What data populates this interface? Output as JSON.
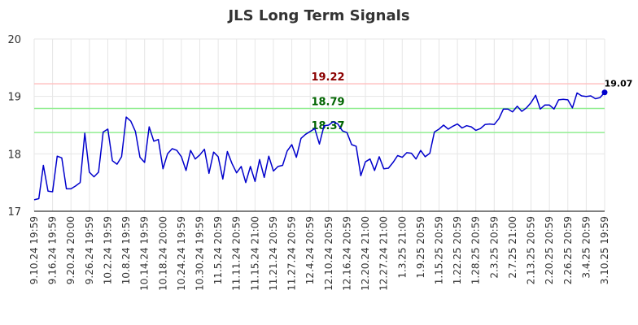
{
  "chart_data": {
    "type": "line",
    "title": "JLS Long Term Signals",
    "xlabel": "",
    "ylabel": "",
    "ylim": [
      17,
      20
    ],
    "yticks": [
      "17",
      "18",
      "19",
      "20"
    ],
    "grid": true,
    "x_tick_labels": [
      "9.10.24 19:59",
      "9.16.24 19:59",
      "9.20.24 20:00",
      "9.26.24 19:59",
      "10.2.24 19:59",
      "10.8.24 19:59",
      "10.14.24 19:59",
      "10.18.24 20:00",
      "10.24.24 19:59",
      "10.30.24 19:59",
      "11.5.24 20:59",
      "11.11.24 20:59",
      "11.15.24 21:00",
      "11.21.24 20:59",
      "11.27.24 20:59",
      "12.4.24 20:59",
      "12.10.24 20:59",
      "12.16.24 20:59",
      "12.20.24 21:00",
      "12.27.24 21:00",
      "1.3.25 21:00",
      "1.9.25 20:59",
      "1.15.25 20:59",
      "1.22.25 20:59",
      "1.28.25 20:59",
      "2.3.25 20:59",
      "2.7.25 21:00",
      "2.13.25 20:59",
      "2.20.25 20:59",
      "2.26.25 20:59",
      "3.4.25 20:59",
      "3.10.25 19:59"
    ],
    "series": [
      {
        "color": "#0000cc",
        "values": [
          17.2,
          17.22,
          17.8,
          17.35,
          17.34,
          17.96,
          17.93,
          17.39,
          17.39,
          17.44,
          17.5,
          18.36,
          17.68,
          17.6,
          17.68,
          18.38,
          18.43,
          17.88,
          17.82,
          17.95,
          18.64,
          18.57,
          18.39,
          17.94,
          17.85,
          18.47,
          18.22,
          18.25,
          17.74,
          18.0,
          18.09,
          18.06,
          17.95,
          17.71,
          18.06,
          17.91,
          17.98,
          18.08,
          17.66,
          18.03,
          17.95,
          17.56,
          18.04,
          17.83,
          17.67,
          17.78,
          17.5,
          17.78,
          17.52,
          17.9,
          17.59,
          17.96,
          17.7,
          17.78,
          17.8,
          18.05,
          18.16,
          17.94,
          18.27,
          18.34,
          18.39,
          18.44,
          18.17,
          18.49,
          18.5,
          18.56,
          18.52,
          18.4,
          18.37,
          18.16,
          18.13,
          17.62,
          17.86,
          17.91,
          17.71,
          17.95,
          17.74,
          17.75,
          17.85,
          17.97,
          17.94,
          18.02,
          18.01,
          17.91,
          18.06,
          17.95,
          18.01,
          18.38,
          18.43,
          18.5,
          18.43,
          18.48,
          18.52,
          18.45,
          18.49,
          18.47,
          18.41,
          18.44,
          18.51,
          18.52,
          18.51,
          18.61,
          18.78,
          18.78,
          18.73,
          18.83,
          18.74,
          18.8,
          18.89,
          19.02,
          18.78,
          18.85,
          18.85,
          18.78,
          18.94,
          18.95,
          18.94,
          18.8,
          19.06,
          19.01,
          19.0,
          19.01,
          18.96,
          18.98,
          19.07
        ]
      }
    ],
    "hlines": [
      {
        "value": 19.22,
        "label": "19.22",
        "line_color": "#ffc0c0",
        "text_color": "#8b0000"
      },
      {
        "value": 18.79,
        "label": "18.79",
        "line_color": "#90ee90",
        "text_color": "#006400"
      },
      {
        "value": 18.37,
        "label": "18.37",
        "line_color": "#90ee90",
        "text_color": "#006400"
      }
    ],
    "last_value_label": "19.07"
  }
}
